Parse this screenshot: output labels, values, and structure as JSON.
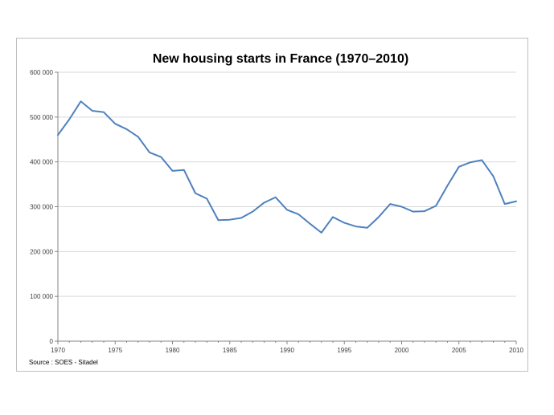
{
  "chart_data": {
    "type": "line",
    "title": "New housing starts in France (1970–2010)",
    "xlabel": "",
    "ylabel": "",
    "source": "Source : SOES - Sitadel",
    "xlim": [
      1970,
      2010
    ],
    "ylim": [
      0,
      600000
    ],
    "x_ticks": [
      1970,
      1975,
      1980,
      1985,
      1990,
      1995,
      2000,
      2005,
      2010
    ],
    "y_ticks": [
      0,
      100000,
      200000,
      300000,
      400000,
      500000,
      600000
    ],
    "y_tick_labels": [
      "0",
      "100 000",
      "200 000",
      "300 000",
      "400 000",
      "500 000",
      "600 000"
    ],
    "grid": true,
    "legend": "none",
    "series_color": "#4f81bd",
    "series": [
      {
        "x": [
          1970,
          1971,
          1972,
          1973,
          1974,
          1975,
          1976,
          1977,
          1978,
          1979,
          1980,
          1981,
          1982,
          1983,
          1984,
          1985,
          1986,
          1987,
          1988,
          1989,
          1990,
          1991,
          1992,
          1993,
          1994,
          1995,
          1996,
          1997,
          1998,
          1999,
          2000,
          2001,
          2002,
          2003,
          2004,
          2005,
          2006,
          2007,
          2008,
          2009,
          2010
        ],
        "values": [
          460000,
          495000,
          535000,
          514000,
          511000,
          485000,
          473000,
          456000,
          421000,
          411000,
          380000,
          382000,
          330000,
          318000,
          270000,
          271000,
          275000,
          289000,
          309000,
          321000,
          293000,
          283000,
          262000,
          242000,
          277000,
          264000,
          256000,
          253000,
          277000,
          306000,
          300000,
          289000,
          290000,
          302000,
          347000,
          389000,
          399000,
          404000,
          368000,
          306000,
          312000
        ]
      }
    ]
  }
}
